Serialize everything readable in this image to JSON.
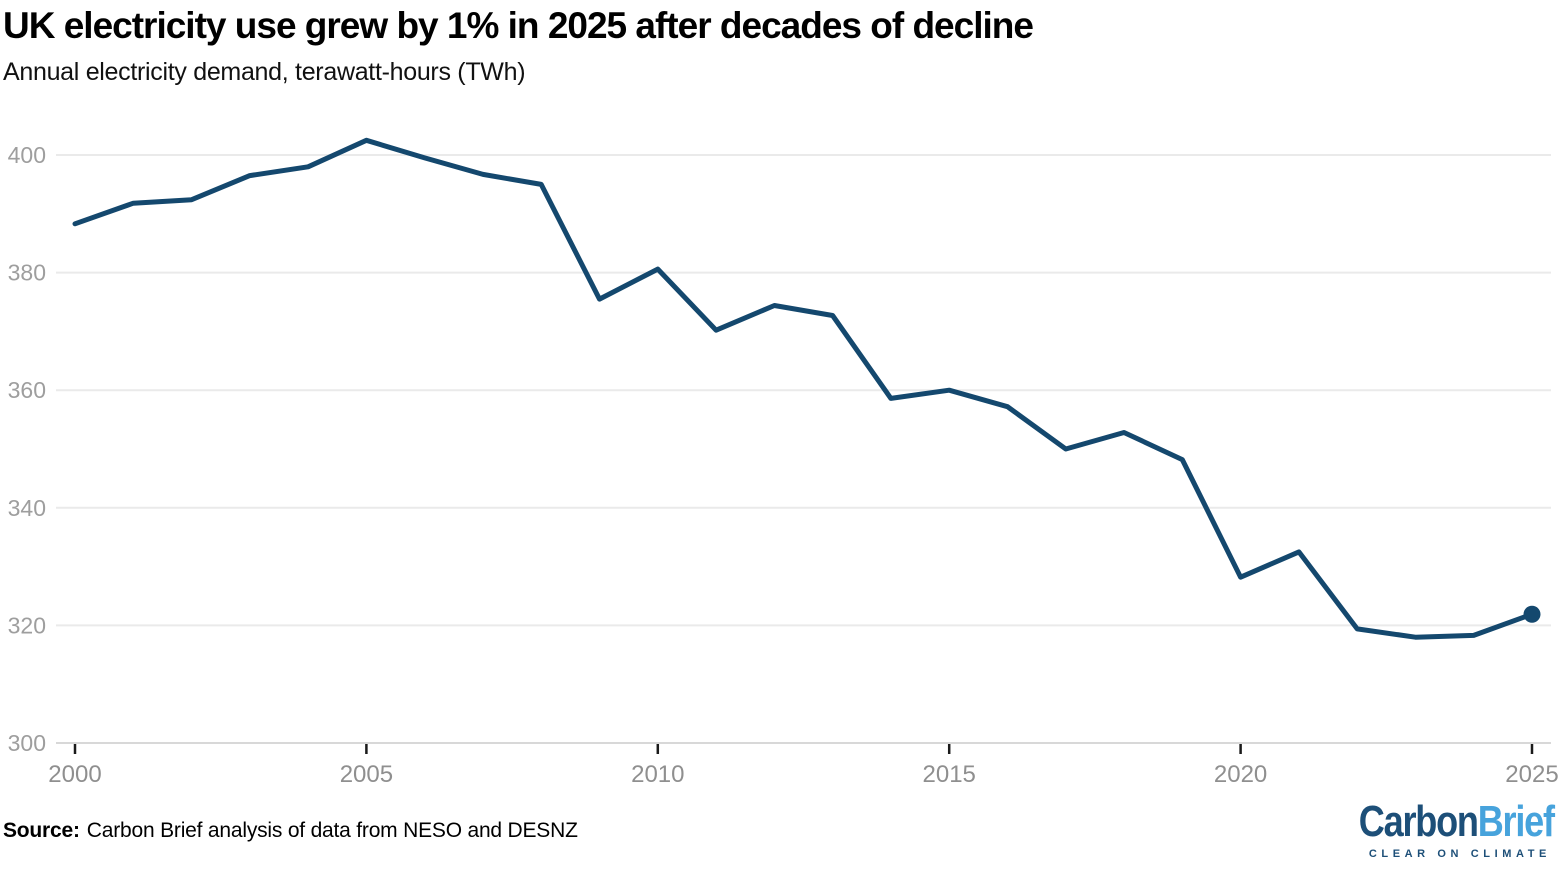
{
  "header": {
    "title": "UK electricity use grew by 1% in 2025 after decades of decline",
    "subtitle": "Annual electricity demand, terawatt-hours (TWh)"
  },
  "chart_data": {
    "type": "line",
    "title": "UK electricity use grew by 1% in 2025 after decades of decline",
    "subtitle": "Annual electricity demand, terawatt-hours (TWh)",
    "x": [
      2000,
      2001,
      2002,
      2003,
      2004,
      2005,
      2006,
      2007,
      2008,
      2009,
      2010,
      2011,
      2012,
      2013,
      2014,
      2015,
      2016,
      2017,
      2018,
      2019,
      2020,
      2021,
      2022,
      2023,
      2024,
      2025
    ],
    "series": [
      {
        "name": "Annual electricity demand (TWh)",
        "values": [
          388.3,
          391.8,
          392.4,
          396.5,
          398.0,
          402.5,
          399.5,
          396.7,
          395.0,
          375.5,
          380.6,
          370.2,
          374.4,
          372.7,
          358.6,
          360.0,
          357.2,
          350.0,
          352.8,
          348.2,
          328.2,
          332.5,
          319.4,
          318.0,
          318.3,
          321.9
        ]
      }
    ],
    "xlabel": "",
    "ylabel": "terawatt-hours (TWh)",
    "ylim": [
      300,
      400
    ],
    "yticks": [
      300,
      320,
      340,
      360,
      380,
      400
    ],
    "xticks": [
      2000,
      2005,
      2010,
      2015,
      2020,
      2025
    ],
    "grid": "horizontal",
    "legend": "none",
    "line_color": "#14486e",
    "endpoint_marker": true,
    "grid_color": "#eaeaea",
    "baseline_color": "#d8d8d8",
    "tick_mark_color": "#1a1a1a",
    "tick_label_color": "#8f8f8f"
  },
  "footer": {
    "source_label": "Source:",
    "source_text": "Carbon Brief analysis of data from NESO and DESNZ"
  },
  "logo": {
    "part1": "Carbon",
    "part2": "Brief",
    "tagline": "CLEAR ON CLIMATE",
    "dark_blue": "#1d4f78",
    "light_blue": "#47a3dc"
  }
}
